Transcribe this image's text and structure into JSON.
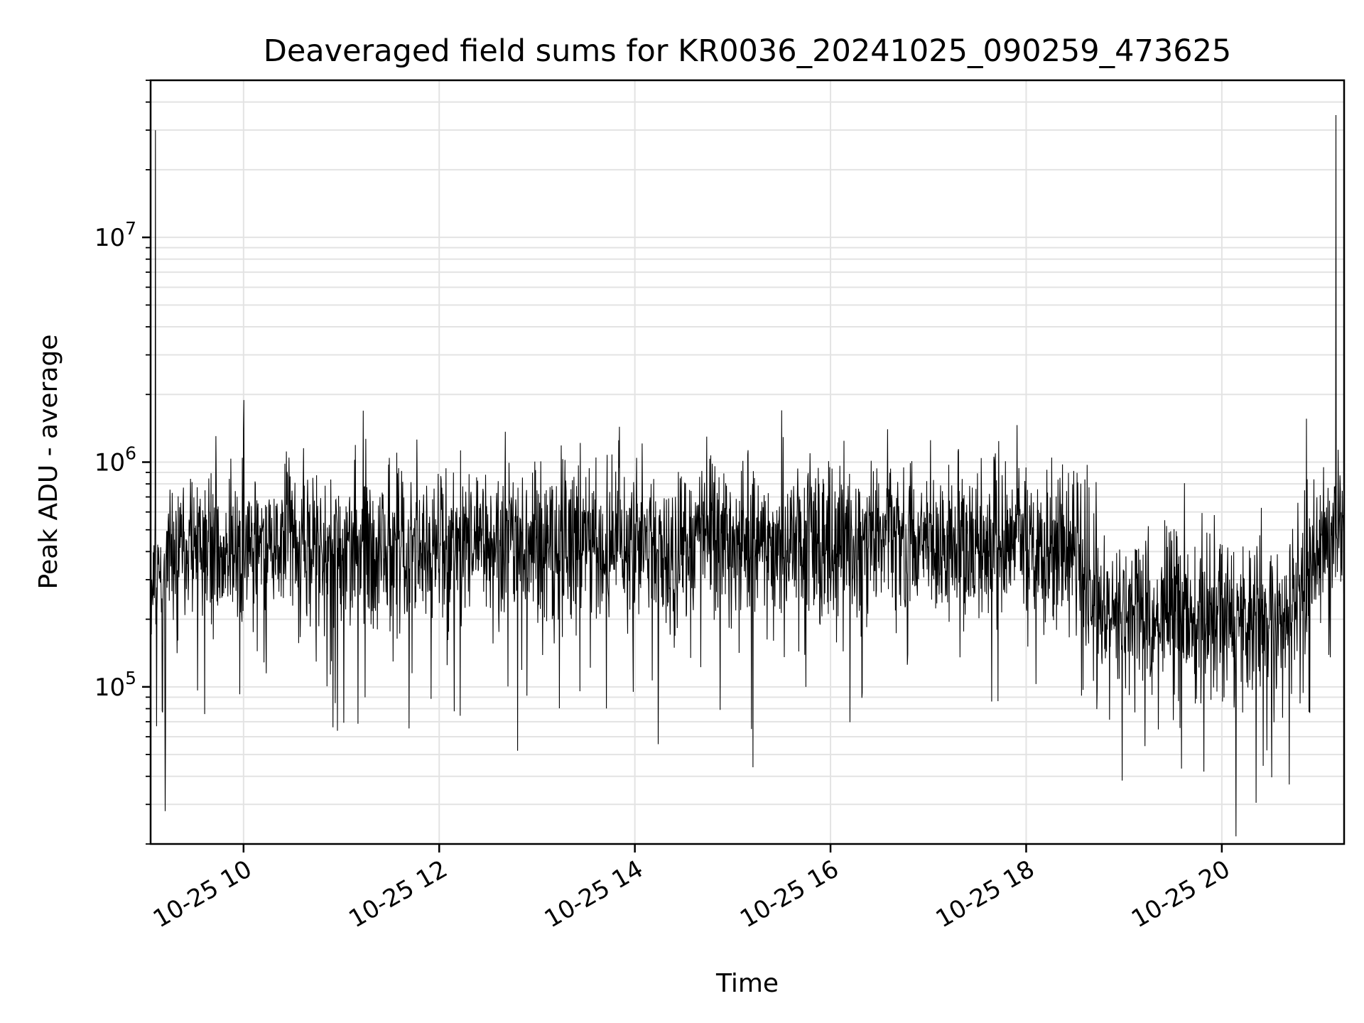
{
  "chart_data": {
    "type": "line",
    "title": "Deaveraged field sums for KR0036_20241025_090259_473625",
    "xlabel": "Time",
    "ylabel": "Peak ADU - average",
    "x_type": "datetime",
    "x_range": [
      "2024-10-25 09:03",
      "2024-10-25 21:15"
    ],
    "y_scale": "log",
    "ylim": [
      20000,
      50000000
    ],
    "grid": "major and minor",
    "legend": "none",
    "line_color": "#000000",
    "x_ticks": [
      {
        "time": "2024-10-25 10:00",
        "label": "10-25 10"
      },
      {
        "time": "2024-10-25 12:00",
        "label": "10-25 12"
      },
      {
        "time": "2024-10-25 14:00",
        "label": "10-25 14"
      },
      {
        "time": "2024-10-25 16:00",
        "label": "10-25 16"
      },
      {
        "time": "2024-10-25 18:00",
        "label": "10-25 18"
      },
      {
        "time": "2024-10-25 20:00",
        "label": "10-25 20"
      }
    ],
    "y_ticks": [
      {
        "value": 100000,
        "base": "10",
        "exp": "5"
      },
      {
        "value": 1000000,
        "base": "10",
        "exp": "6"
      },
      {
        "value": 10000000,
        "base": "10",
        "exp": "7"
      }
    ],
    "series": [
      {
        "baseline": [
          {
            "time": "2024-10-25 09:03",
            "value": 300000
          },
          {
            "time": "2024-10-25 09:30",
            "value": 420000
          },
          {
            "time": "2024-10-25 12:00",
            "value": 420000
          },
          {
            "time": "2024-10-25 15:00",
            "value": 430000
          },
          {
            "time": "2024-10-25 17:00",
            "value": 460000
          },
          {
            "time": "2024-10-25 18:30",
            "value": 440000
          },
          {
            "time": "2024-10-25 18:45",
            "value": 220000
          },
          {
            "time": "2024-10-25 20:45",
            "value": 200000
          },
          {
            "time": "2024-10-25 21:00",
            "value": 400000
          },
          {
            "time": "2024-10-25 21:15",
            "value": 450000
          }
        ],
        "peaks": [
          {
            "time": "2024-10-25 09:06",
            "value": 30000000
          },
          {
            "time": "2024-10-25 09:12",
            "value": 28000
          },
          {
            "time": "2024-10-25 10:00",
            "value": 1400000
          },
          {
            "time": "2024-10-25 11:15",
            "value": 1270000
          },
          {
            "time": "2024-10-25 12:48",
            "value": 52000
          },
          {
            "time": "2024-10-25 13:50",
            "value": 1250000
          },
          {
            "time": "2024-10-25 15:30",
            "value": 1700000
          },
          {
            "time": "2024-10-25 16:35",
            "value": 1400000
          },
          {
            "time": "2024-10-25 20:52",
            "value": 1560000
          },
          {
            "time": "2024-10-25 21:10",
            "value": 35000000
          }
        ]
      }
    ]
  }
}
